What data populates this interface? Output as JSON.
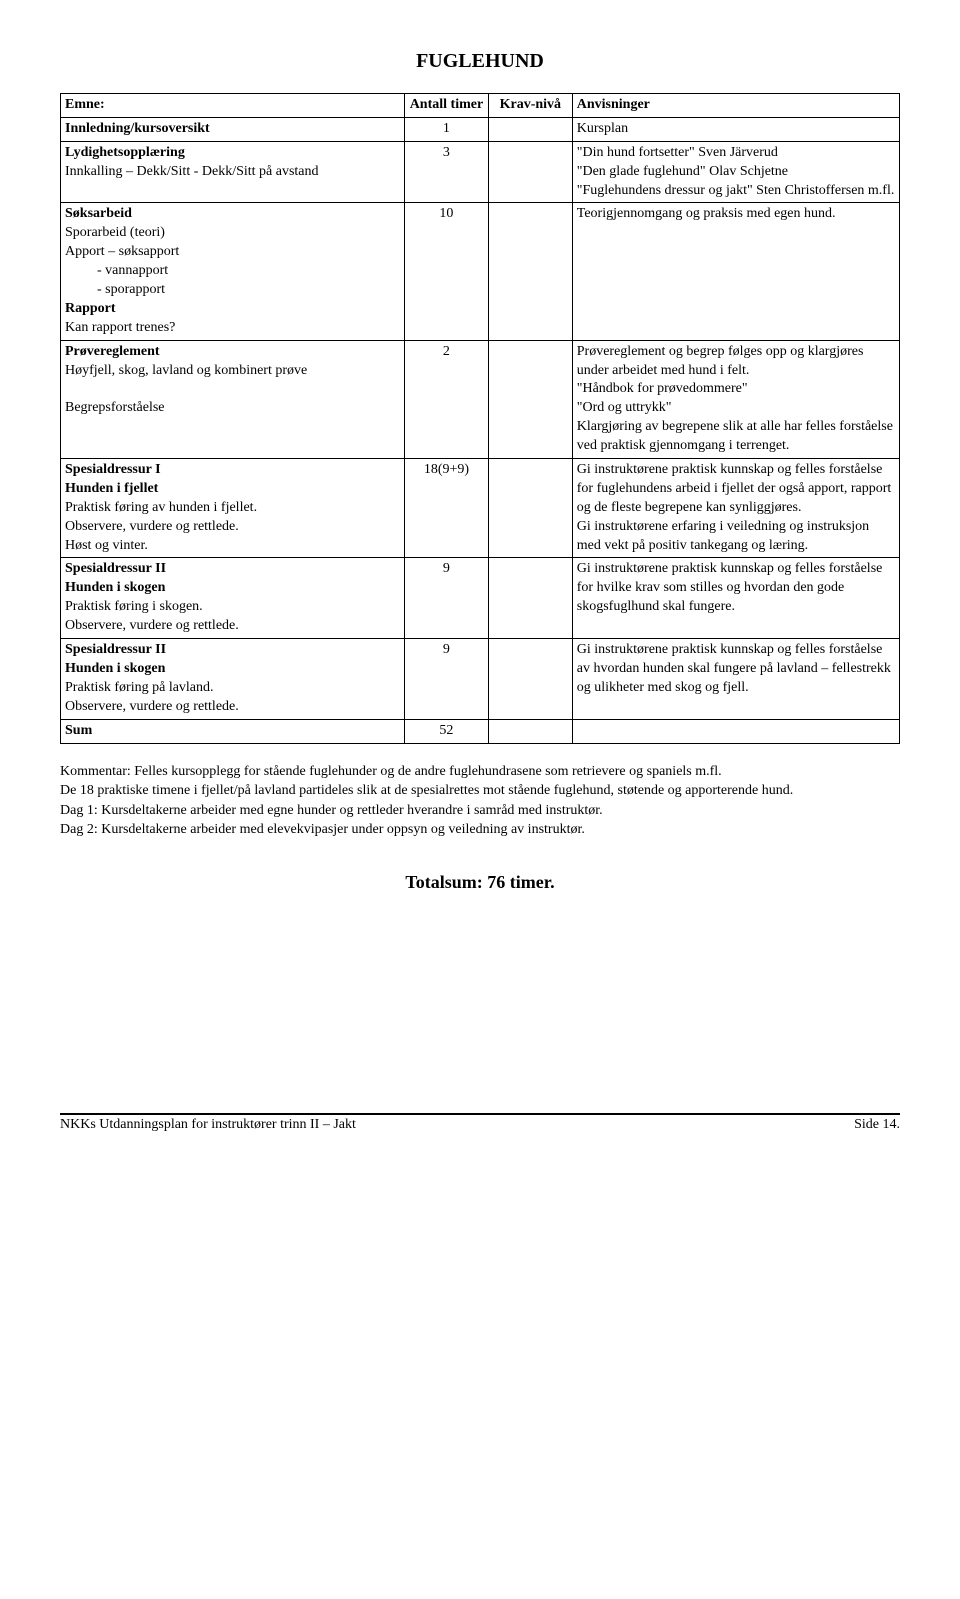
{
  "title": "FUGLEHUND",
  "headers": {
    "c1": "Emne:",
    "c2": "Antall timer",
    "c3": "Krav-nivå",
    "c4": "Anvisninger"
  },
  "rows": [
    {
      "col1": [
        {
          "text": "Innledning/kursoversikt",
          "bold": true
        }
      ],
      "col2": "1",
      "col3": "",
      "col4": [
        {
          "text": "Kursplan"
        }
      ]
    },
    {
      "col1": [
        {
          "text": "Lydighetsopplæring",
          "bold": true
        },
        {
          "text": "Innkalling – Dekk/Sitt - Dekk/Sitt på avstand"
        }
      ],
      "col2": "3",
      "col3": "",
      "col4": [
        {
          "text": "\"Din hund fortsetter\" Sven Järverud"
        },
        {
          "text": "\"Den glade fuglehund\" Olav Schjetne"
        },
        {
          "text": "\"Fuglehundens dressur og jakt\" Sten Christoffersen m.fl."
        }
      ]
    },
    {
      "col1": [
        {
          "text": "Søksarbeid",
          "bold": true
        },
        {
          "text": "Sporarbeid (teori)"
        },
        {
          "text": "Apport – søksapport"
        },
        {
          "text": "- vannapport",
          "indent": true
        },
        {
          "text": "- sporapport",
          "indent": true
        },
        {
          "text": "Rapport",
          "bold": true
        },
        {
          "text": "Kan rapport trenes?"
        }
      ],
      "col2": "10",
      "col3": "",
      "col4": [
        {
          "text": "Teorigjennomgang og praksis med egen hund."
        }
      ]
    },
    {
      "col1": [
        {
          "text": "Prøvereglement",
          "bold": true
        },
        {
          "text": "Høyfjell, skog, lavland og kombinert prøve"
        },
        {
          "text": " "
        },
        {
          "text": "Begrepsforståelse"
        }
      ],
      "col2": "2",
      "col3": "",
      "col4": [
        {
          "text": "Prøvereglement og begrep følges opp og klargjøres under arbeidet med hund i felt."
        },
        {
          "text": "\"Håndbok for prøvedommere\""
        },
        {
          "text": "\"Ord og uttrykk\""
        },
        {
          "text": "Klargjøring av begrepene slik at alle har felles forståelse ved praktisk gjennomgang i terrenget."
        }
      ]
    },
    {
      "col1": [
        {
          "text": "Spesialdressur I",
          "bold": true
        },
        {
          "text": "Hunden i fjellet",
          "bold": true
        },
        {
          "text": "Praktisk føring av hunden i fjellet."
        },
        {
          "text": "Observere, vurdere og rettlede."
        },
        {
          "text": "Høst og vinter."
        }
      ],
      "col2": "18(9+9)",
      "col3": "",
      "col4": [
        {
          "text": "Gi instruktørene praktisk kunnskap og felles forståelse for fuglehundens arbeid i fjellet der også apport, rapport og de fleste begrepene kan synliggjøres."
        },
        {
          "text": "Gi instruktørene erfaring i veiledning og instruksjon med vekt på positiv tankegang og læring."
        }
      ]
    },
    {
      "col1": [
        {
          "text": "Spesialdressur II",
          "bold": true
        },
        {
          "text": "Hunden i skogen",
          "bold": true
        },
        {
          "text": "Praktisk føring i skogen."
        },
        {
          "text": "Observere, vurdere og rettlede."
        }
      ],
      "col2": "9",
      "col3": "",
      "col4": [
        {
          "text": "Gi instruktørene praktisk kunnskap og felles forståelse for hvilke krav som stilles og hvordan den gode skogsfuglhund skal fungere."
        }
      ]
    },
    {
      "col1": [
        {
          "text": "Spesialdressur II",
          "bold": true
        },
        {
          "text": "Hunden i skogen",
          "bold": true
        },
        {
          "text": "Praktisk føring på lavland."
        },
        {
          "text": "Observere, vurdere og rettlede."
        }
      ],
      "col2": "9",
      "col3": "",
      "col4": [
        {
          "text": "Gi instruktørene praktisk kunnskap og felles forståelse av hvordan hunden skal fungere på lavland – fellestrekk og ulikheter med skog og fjell."
        }
      ]
    },
    {
      "col1": [
        {
          "text": "Sum",
          "bold": true
        }
      ],
      "col2": "52",
      "col3": "",
      "col4": []
    }
  ],
  "comments": [
    "Kommentar: Felles kursopplegg for stående fuglehunder og de andre fuglehundrasene som retrievere og spaniels m.fl.",
    "De 18 praktiske timene i fjellet/på lavland partideles slik at de spesialrettes mot stående fuglehund, støtende og apporterende hund.",
    "Dag 1: Kursdeltakerne arbeider med egne hunder og rettleder hverandre i samråd med instruktør.",
    "Dag 2: Kursdeltakerne arbeider med elevekvipasjer under oppsyn og veiledning av instruktør."
  ],
  "total_line": "Totalsum: 76 timer.",
  "footer_left": "NKKs Utdanningsplan for instruktører trinn II – Jakt",
  "footer_right": "Side 14."
}
